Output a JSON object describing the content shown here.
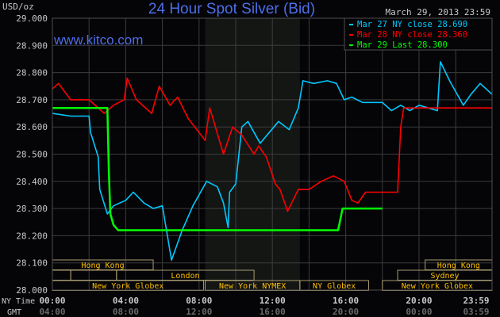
{
  "chart_data": {
    "type": "line",
    "title": "24 Hour Spot Silver (Bid)",
    "ylabel": "USD/oz",
    "timestamp": "March 29, 2013 23:59",
    "watermark": "www.kitco.com",
    "ylim": [
      28.0,
      29.0
    ],
    "yticks": [
      "29.000",
      "28.900",
      "28.800",
      "28.700",
      "28.600",
      "28.500",
      "28.400",
      "28.300",
      "28.200",
      "28.100",
      "28.000"
    ],
    "xlim": [
      "00:00",
      "23:59"
    ],
    "x_axis_rows": [
      {
        "label": "NY Time",
        "ticks": [
          "00:00",
          "04:00",
          "08:00",
          "12:00",
          "16:00",
          "20:00",
          "23:59"
        ]
      },
      {
        "label": "GMT",
        "ticks": [
          "04:00",
          "08:00",
          "12:00",
          "16:00",
          "20:00",
          "00:00",
          "03:59"
        ]
      }
    ],
    "grid": true,
    "legend_position": "top-right",
    "shaded_session": [
      "08:20",
      "13:30"
    ],
    "series": [
      {
        "name": "Mar 27 NY close 28.690",
        "color": "#00c8ff",
        "points": [
          [
            "00:00",
            28.65
          ],
          [
            "01:00",
            28.64
          ],
          [
            "02:00",
            28.64
          ],
          [
            "02:05",
            28.58
          ],
          [
            "02:30",
            28.49
          ],
          [
            "02:35",
            28.37
          ],
          [
            "03:00",
            28.28
          ],
          [
            "03:20",
            28.31
          ],
          [
            "04:00",
            28.33
          ],
          [
            "04:25",
            28.36
          ],
          [
            "05:00",
            28.32
          ],
          [
            "05:30",
            28.3
          ],
          [
            "06:00",
            28.31
          ],
          [
            "06:30",
            28.11
          ],
          [
            "07:05",
            28.22
          ],
          [
            "07:40",
            28.31
          ],
          [
            "08:25",
            28.4
          ],
          [
            "09:00",
            28.38
          ],
          [
            "09:20",
            28.32
          ],
          [
            "09:35",
            28.23
          ],
          [
            "09:40",
            28.36
          ],
          [
            "10:00",
            28.39
          ],
          [
            "10:20",
            28.6
          ],
          [
            "10:40",
            28.62
          ],
          [
            "11:20",
            28.54
          ],
          [
            "12:20",
            28.62
          ],
          [
            "12:55",
            28.59
          ],
          [
            "13:25",
            28.67
          ],
          [
            "13:40",
            28.77
          ],
          [
            "14:15",
            28.76
          ],
          [
            "15:00",
            28.77
          ],
          [
            "15:30",
            28.76
          ],
          [
            "15:55",
            28.7
          ],
          [
            "16:20",
            28.71
          ],
          [
            "16:55",
            28.69
          ],
          [
            "18:00",
            28.69
          ],
          [
            "18:30",
            28.66
          ],
          [
            "19:00",
            28.68
          ],
          [
            "19:30",
            28.66
          ],
          [
            "20:00",
            28.68
          ],
          [
            "20:30",
            28.67
          ],
          [
            "21:00",
            28.66
          ],
          [
            "21:10",
            28.84
          ],
          [
            "21:40",
            28.77
          ],
          [
            "22:25",
            28.68
          ],
          [
            "22:50",
            28.72
          ],
          [
            "23:20",
            28.76
          ],
          [
            "23:59",
            28.72
          ]
        ]
      },
      {
        "name": "Mar 28 NY close 28.360",
        "color": "#ff0000",
        "points": [
          [
            "00:00",
            28.74
          ],
          [
            "00:20",
            28.76
          ],
          [
            "01:00",
            28.7
          ],
          [
            "02:00",
            28.7
          ],
          [
            "02:50",
            28.65
          ],
          [
            "03:20",
            28.68
          ],
          [
            "03:55",
            28.7
          ],
          [
            "04:05",
            28.78
          ],
          [
            "04:35",
            28.7
          ],
          [
            "05:25",
            28.65
          ],
          [
            "05:50",
            28.75
          ],
          [
            "06:25",
            28.68
          ],
          [
            "06:50",
            28.71
          ],
          [
            "07:25",
            28.63
          ],
          [
            "08:00",
            28.58
          ],
          [
            "08:20",
            28.55
          ],
          [
            "08:35",
            28.67
          ],
          [
            "09:20",
            28.5
          ],
          [
            "09:50",
            28.6
          ],
          [
            "10:20",
            28.57
          ],
          [
            "11:00",
            28.5
          ],
          [
            "11:15",
            28.53
          ],
          [
            "11:40",
            28.49
          ],
          [
            "12:10",
            28.39
          ],
          [
            "12:25",
            28.37
          ],
          [
            "12:50",
            28.29
          ],
          [
            "13:25",
            28.37
          ],
          [
            "14:00",
            28.37
          ],
          [
            "14:40",
            28.4
          ],
          [
            "15:20",
            28.42
          ],
          [
            "15:55",
            28.4
          ],
          [
            "16:20",
            28.33
          ],
          [
            "16:40",
            28.32
          ],
          [
            "17:05",
            28.36
          ],
          [
            "18:50",
            28.36
          ],
          [
            "19:00",
            28.6
          ],
          [
            "19:10",
            28.67
          ],
          [
            "23:59",
            28.67
          ]
        ]
      },
      {
        "name": "Mar 29 Last 28.300",
        "color": "#00ff00",
        "points": [
          [
            "00:00",
            28.67
          ],
          [
            "03:00",
            28.67
          ],
          [
            "03:05",
            28.43
          ],
          [
            "03:10",
            28.28
          ],
          [
            "03:20",
            28.24
          ],
          [
            "03:35",
            28.22
          ],
          [
            "15:35",
            28.22
          ],
          [
            "15:50",
            28.3
          ],
          [
            "18:00",
            28.3
          ]
        ]
      }
    ],
    "sessions": [
      {
        "label": "Hong Kong",
        "row": 0,
        "start": "00:00",
        "end": "05:30"
      },
      {
        "label": "Hong Kong",
        "row": 0,
        "start": "20:20",
        "end": "23:59"
      },
      {
        "label": "",
        "row": 1,
        "start": "00:00",
        "end": "01:00"
      },
      {
        "label": "",
        "row": 1,
        "start": "01:00",
        "end": "03:30"
      },
      {
        "label": "London",
        "row": 1,
        "start": "03:30",
        "end": "11:00"
      },
      {
        "label": "Sydney",
        "row": 1,
        "start": "18:50",
        "end": "23:59"
      },
      {
        "label": "New York Globex",
        "row": 2,
        "start": "00:00",
        "end": "08:15"
      },
      {
        "label": "New York NYMEX",
        "row": 2,
        "start": "08:20",
        "end": "13:30"
      },
      {
        "label": "NY Globex",
        "row": 2,
        "start": "13:30",
        "end": "17:15"
      },
      {
        "label": "New York Globex",
        "row": 2,
        "start": "18:00",
        "end": "23:59"
      }
    ]
  }
}
